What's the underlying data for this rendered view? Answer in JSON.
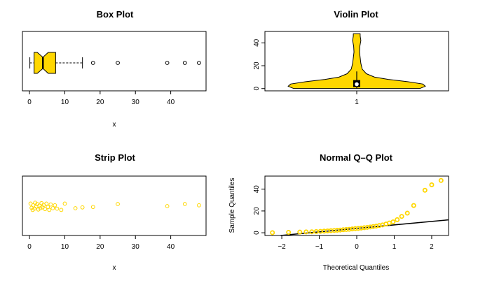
{
  "chart_data": [
    {
      "type": "box",
      "title": "Box Plot",
      "xlabel": "x",
      "xlim": [
        -2,
        50
      ],
      "xticks": [
        0,
        10,
        20,
        30,
        40
      ],
      "notch": true,
      "fill": "#ffd700",
      "stats": {
        "whisker_low": 0.1,
        "q1": 1.3,
        "median": 3.8,
        "q3": 7.4,
        "whisker_high": 15.0,
        "notch_low": 2.2,
        "notch_high": 5.3
      },
      "outliers": [
        18.0,
        25.0,
        39.0,
        44.0,
        48.0
      ]
    },
    {
      "type": "violin",
      "title": "Violin Plot",
      "xtick_label": "1",
      "yticks": [
        0,
        20,
        40
      ],
      "ylim": [
        -2,
        50
      ],
      "fill": "#ffd700",
      "y_range": [
        0.1,
        48
      ],
      "box": {
        "q1": 1.3,
        "q3": 7.4,
        "median": 3.8,
        "whisker_low": 0.1,
        "whisker_high": 15.0
      },
      "density_profile": [
        {
          "y": 0.1,
          "w": 0.92
        },
        {
          "y": 2,
          "w": 1.0
        },
        {
          "y": 4,
          "w": 0.96
        },
        {
          "y": 6,
          "w": 0.74
        },
        {
          "y": 8,
          "w": 0.46
        },
        {
          "y": 10,
          "w": 0.26
        },
        {
          "y": 13,
          "w": 0.14
        },
        {
          "y": 17,
          "w": 0.08
        },
        {
          "y": 22,
          "w": 0.06
        },
        {
          "y": 27,
          "w": 0.05
        },
        {
          "y": 32,
          "w": 0.04
        },
        {
          "y": 37,
          "w": 0.045
        },
        {
          "y": 42,
          "w": 0.06
        },
        {
          "y": 46,
          "w": 0.05
        },
        {
          "y": 48,
          "w": 0.05
        }
      ]
    },
    {
      "type": "scatter",
      "title": "Strip Plot",
      "xlabel": "x",
      "xlim": [
        -2,
        50
      ],
      "xticks": [
        0,
        10,
        20,
        30,
        40
      ],
      "color": "#ffd700",
      "points": [
        {
          "x": 0.3,
          "j": -0.6
        },
        {
          "x": 0.6,
          "j": 0.4
        },
        {
          "x": 0.9,
          "j": 0.9
        },
        {
          "x": 1.1,
          "j": -0.2
        },
        {
          "x": 1.4,
          "j": 0.6
        },
        {
          "x": 1.6,
          "j": -0.8
        },
        {
          "x": 1.9,
          "j": 0.1
        },
        {
          "x": 2.2,
          "j": -0.5
        },
        {
          "x": 2.5,
          "j": 0.8
        },
        {
          "x": 2.8,
          "j": -0.1
        },
        {
          "x": 3.1,
          "j": 0.5
        },
        {
          "x": 3.4,
          "j": -0.7
        },
        {
          "x": 3.7,
          "j": 0.3
        },
        {
          "x": 4.0,
          "j": -0.3
        },
        {
          "x": 4.4,
          "j": 0.7
        },
        {
          "x": 4.8,
          "j": -0.6
        },
        {
          "x": 5.2,
          "j": 0.2
        },
        {
          "x": 5.6,
          "j": 0.9
        },
        {
          "x": 6.0,
          "j": -0.4
        },
        {
          "x": 6.6,
          "j": 0.5
        },
        {
          "x": 7.2,
          "j": -0.2
        },
        {
          "x": 7.8,
          "j": 0.6
        },
        {
          "x": 9.0,
          "j": 0.9
        },
        {
          "x": 10.0,
          "j": -0.6
        },
        {
          "x": 13.0,
          "j": 0.5
        },
        {
          "x": 15.0,
          "j": 0.3
        },
        {
          "x": 18.0,
          "j": 0.2
        },
        {
          "x": 25.0,
          "j": -0.5
        },
        {
          "x": 39.0,
          "j": 0.0
        },
        {
          "x": 44.0,
          "j": -0.5
        },
        {
          "x": 48.0,
          "j": -0.2
        }
      ]
    },
    {
      "type": "scatter",
      "title": "Normal Q–Q Plot",
      "xlabel": "Theoretical Quantiles",
      "ylabel": "Sample Quantiles",
      "xlim": [
        -2.45,
        2.45
      ],
      "ylim": [
        -2.5,
        52
      ],
      "xticks": [
        -2,
        -1,
        0,
        1,
        2
      ],
      "xtick_labels": [
        "−2",
        "−1",
        "0",
        "1",
        "2"
      ],
      "yticks": [
        0,
        20,
        40
      ],
      "color": "#ffd700",
      "reference_line": {
        "slope": 3.2,
        "intercept": 4.0
      },
      "points": [
        [
          -2.25,
          0.1
        ],
        [
          -1.82,
          0.4
        ],
        [
          -1.52,
          0.6
        ],
        [
          -1.35,
          0.8
        ],
        [
          -1.2,
          0.9
        ],
        [
          -1.08,
          1.1
        ],
        [
          -0.97,
          1.3
        ],
        [
          -0.87,
          1.5
        ],
        [
          -0.78,
          1.7
        ],
        [
          -0.69,
          1.9
        ],
        [
          -0.6,
          2.1
        ],
        [
          -0.52,
          2.3
        ],
        [
          -0.44,
          2.5
        ],
        [
          -0.36,
          2.8
        ],
        [
          -0.28,
          3.0
        ],
        [
          -0.2,
          3.2
        ],
        [
          -0.12,
          3.5
        ],
        [
          -0.04,
          3.8
        ],
        [
          0.04,
          4.0
        ],
        [
          0.12,
          4.3
        ],
        [
          0.2,
          4.6
        ],
        [
          0.28,
          4.9
        ],
        [
          0.36,
          5.3
        ],
        [
          0.44,
          5.7
        ],
        [
          0.52,
          6.1
        ],
        [
          0.6,
          6.6
        ],
        [
          0.69,
          7.2
        ],
        [
          0.78,
          8.0
        ],
        [
          0.87,
          9.0
        ],
        [
          0.97,
          10.0
        ],
        [
          1.08,
          12.0
        ],
        [
          1.2,
          15.0
        ],
        [
          1.35,
          18.0
        ],
        [
          1.52,
          25.0
        ],
        [
          1.82,
          39.0
        ],
        [
          2.0,
          44.0
        ],
        [
          2.25,
          48.0
        ]
      ]
    }
  ]
}
